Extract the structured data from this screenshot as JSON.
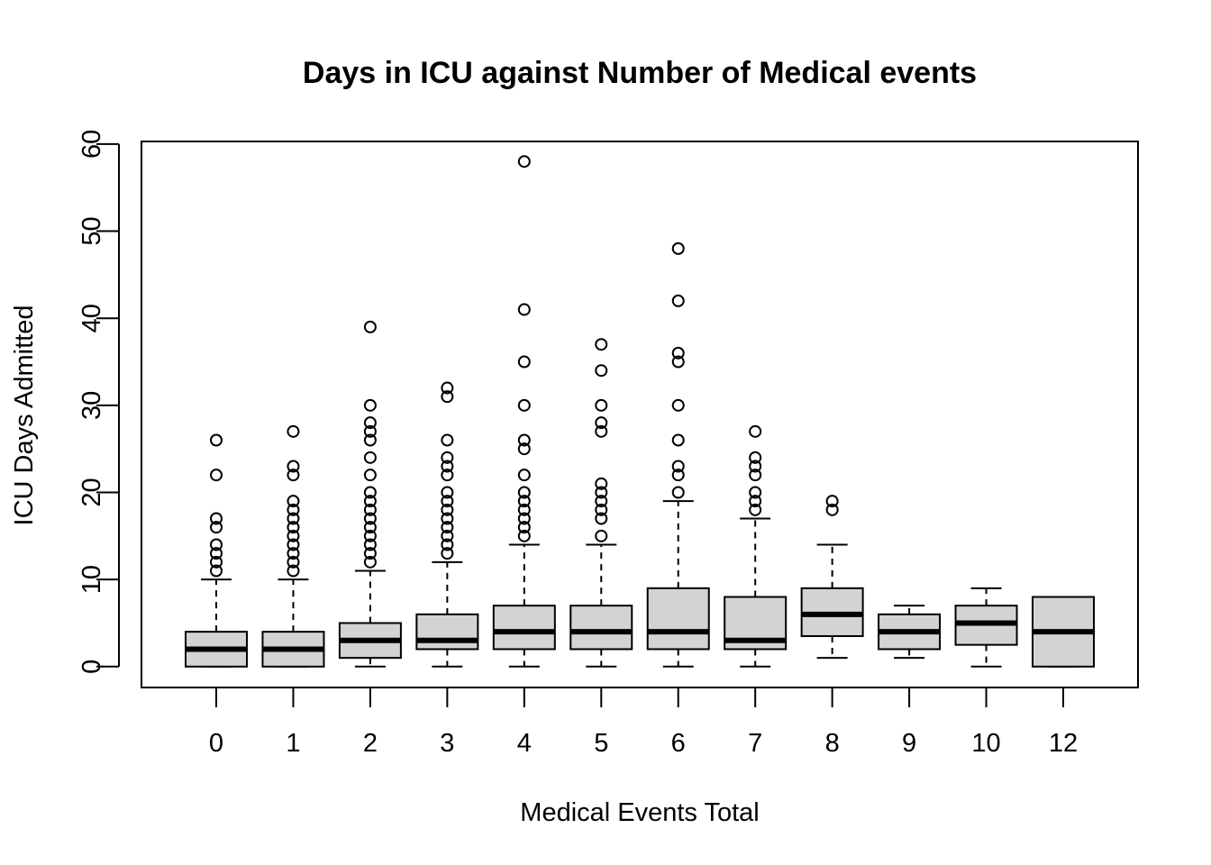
{
  "chart_data": {
    "type": "boxplot",
    "title": "Days in ICU against Number of Medical events",
    "xlabel": "Medical Events Total",
    "ylabel": "ICU Days Admitted",
    "ylim": [
      -2.4,
      60.3
    ],
    "yticks": [
      "0",
      "10",
      "20",
      "30",
      "40",
      "50",
      "60"
    ],
    "grid": false,
    "box_fill": "#d3d3d3",
    "line_color": "#000000",
    "categories": [
      "0",
      "1",
      "2",
      "3",
      "4",
      "5",
      "6",
      "7",
      "8",
      "9",
      "10",
      "12"
    ],
    "boxes": [
      {
        "category": "0",
        "whisker_low": 0,
        "q1": 0,
        "median": 2,
        "q3": 4,
        "whisker_high": 10,
        "outliers": [
          11,
          12,
          13,
          14,
          16,
          17,
          22,
          26
        ]
      },
      {
        "category": "1",
        "whisker_low": 0,
        "q1": 0,
        "median": 2,
        "q3": 4,
        "whisker_high": 10,
        "outliers": [
          11,
          12,
          13,
          14,
          15,
          16,
          17,
          18,
          19,
          22,
          23,
          27
        ]
      },
      {
        "category": "2",
        "whisker_low": 0,
        "q1": 1,
        "median": 3,
        "q3": 5,
        "whisker_high": 11,
        "outliers": [
          12,
          13,
          14,
          15,
          16,
          17,
          18,
          19,
          20,
          22,
          24,
          26,
          27,
          28,
          30,
          39
        ]
      },
      {
        "category": "3",
        "whisker_low": 0,
        "q1": 2,
        "median": 3,
        "q3": 6,
        "whisker_high": 12,
        "outliers": [
          13,
          14,
          15,
          16,
          17,
          18,
          19,
          20,
          22,
          23,
          24,
          26,
          31,
          32
        ]
      },
      {
        "category": "4",
        "whisker_low": 0,
        "q1": 2,
        "median": 4,
        "q3": 7,
        "whisker_high": 14,
        "outliers": [
          15,
          16,
          17,
          18,
          19,
          20,
          22,
          25,
          26,
          30,
          35,
          41,
          58
        ]
      },
      {
        "category": "5",
        "whisker_low": 0,
        "q1": 2,
        "median": 4,
        "q3": 7,
        "whisker_high": 14,
        "outliers": [
          15,
          17,
          18,
          19,
          20,
          21,
          27,
          28,
          30,
          34,
          37
        ]
      },
      {
        "category": "6",
        "whisker_low": 0,
        "q1": 2,
        "median": 4,
        "q3": 9,
        "whisker_high": 19,
        "outliers": [
          20,
          22,
          23,
          26,
          30,
          35,
          36,
          42,
          48
        ]
      },
      {
        "category": "7",
        "whisker_low": 0,
        "q1": 2,
        "median": 3,
        "q3": 8,
        "whisker_high": 17,
        "outliers": [
          18,
          19,
          20,
          22,
          23,
          24,
          27
        ]
      },
      {
        "category": "8",
        "whisker_low": 1,
        "q1": 3.5,
        "median": 6,
        "q3": 9,
        "whisker_high": 14,
        "outliers": [
          18,
          19
        ]
      },
      {
        "category": "9",
        "whisker_low": 1,
        "q1": 2,
        "median": 4,
        "q3": 6,
        "whisker_high": 7,
        "outliers": []
      },
      {
        "category": "10",
        "whisker_low": 0,
        "q1": 2.5,
        "median": 5,
        "q3": 7,
        "whisker_high": 9,
        "outliers": []
      },
      {
        "category": "12",
        "whisker_low": 0,
        "q1": 0,
        "median": 4,
        "q3": 8,
        "whisker_high": 8,
        "outliers": []
      }
    ]
  }
}
